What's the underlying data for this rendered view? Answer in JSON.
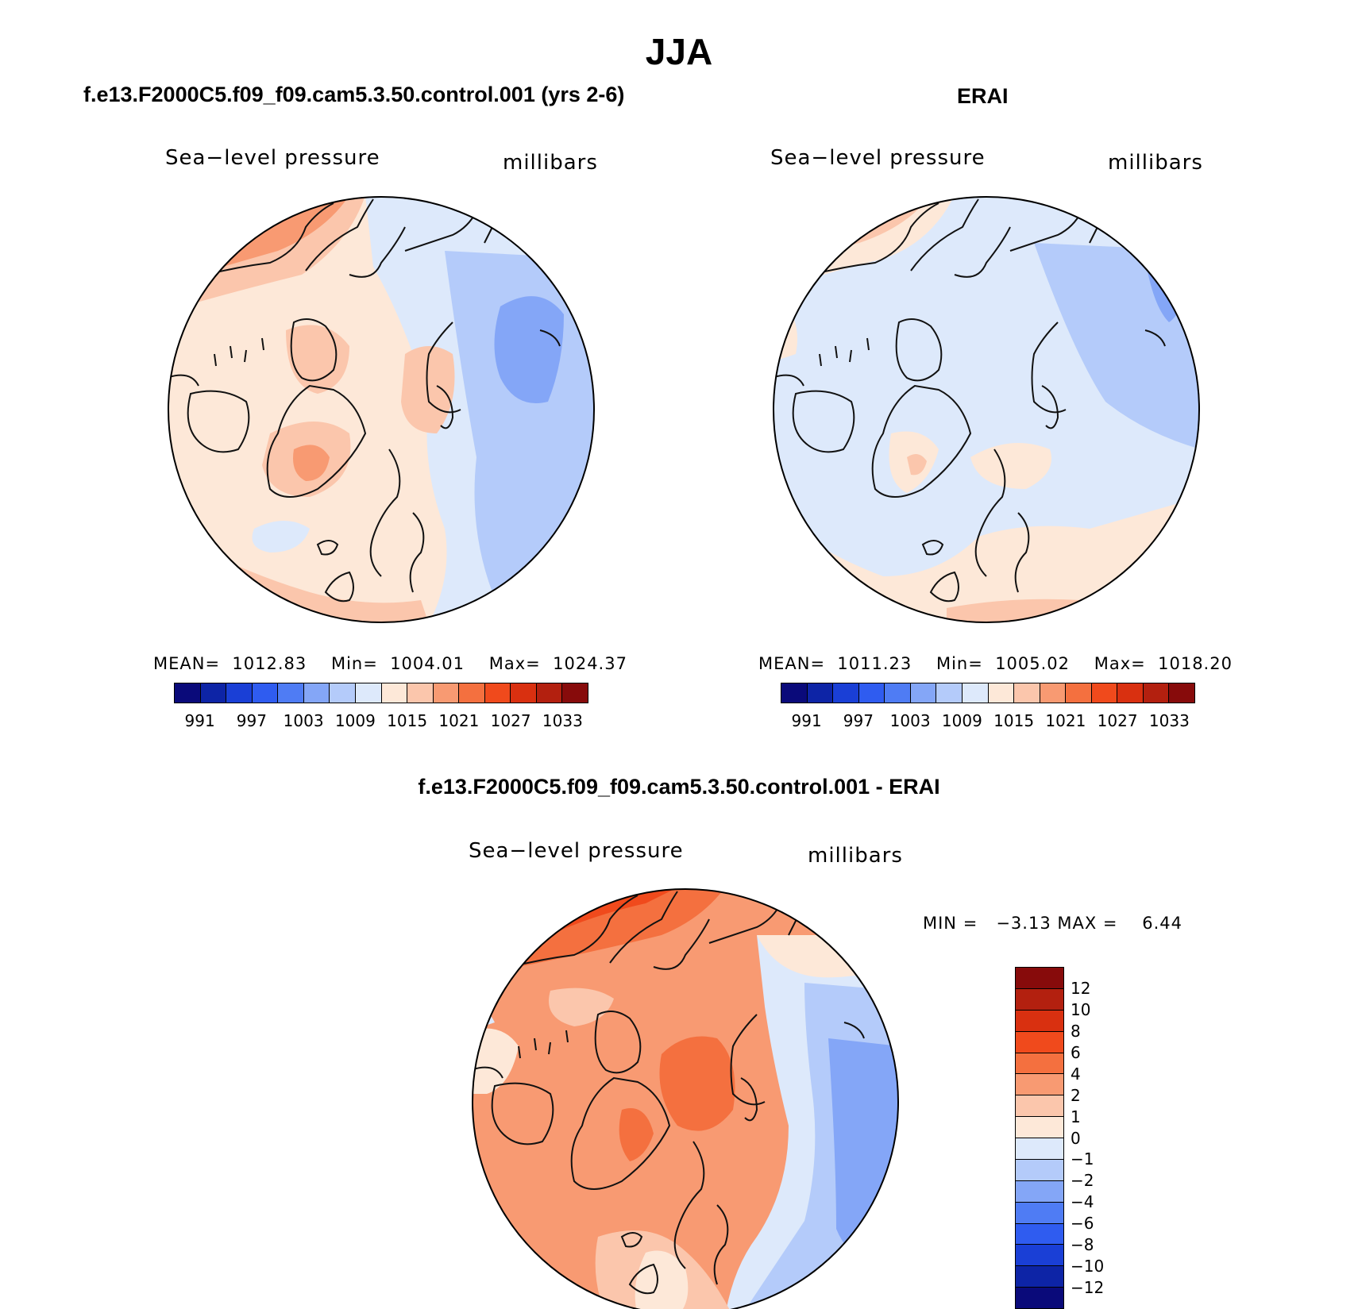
{
  "title": "JJA",
  "panels": [
    {
      "title": "f.e13.F2000C5.f09_f09.cam5.3.50.control.001 (yrs 2-6)",
      "field": "Sea−level pressure",
      "units": "millibars",
      "stats": {
        "mean_label": "MEAN=",
        "mean": "1012.83",
        "min_label": "Min=",
        "min": "1004.01",
        "max_label": "Max=",
        "max": "1024.37"
      }
    },
    {
      "title": "ERAI",
      "field": "Sea−level pressure",
      "units": "millibars",
      "stats": {
        "mean_label": "MEAN=",
        "mean": "1011.23",
        "min_label": "Min=",
        "min": "1005.02",
        "max_label": "Max=",
        "max": "1018.20"
      }
    },
    {
      "title": "f.e13.F2000C5.f09_f09.cam5.3.50.control.001 - ERAI",
      "field": "Sea−level pressure",
      "units": "millibars",
      "stats": {
        "min_label": "MIN =",
        "min": "−3.13",
        "max_label": "MAX =",
        "max": "6.44"
      }
    }
  ],
  "abs_colorbar": {
    "labels": [
      "991",
      "997",
      "1003",
      "1009",
      "1015",
      "1021",
      "1027",
      "1033"
    ],
    "colors": [
      "#0a0a7a",
      "#0d24a6",
      "#1a3fd6",
      "#2f5cf0",
      "#4f7cf4",
      "#84a6f7",
      "#b4cbfa",
      "#dde9fb",
      "#fde8d8",
      "#fbc6ac",
      "#f89a72",
      "#f4703f",
      "#f04a1c",
      "#d93010",
      "#b3200f",
      "#870b0b"
    ]
  },
  "diff_colorbar": {
    "labels": [
      "12",
      "10",
      "8",
      "6",
      "4",
      "2",
      "1",
      "0",
      "−1",
      "−2",
      "−4",
      "−6",
      "−8",
      "−10",
      "−12"
    ],
    "colors": [
      "#870b0b",
      "#b3200f",
      "#d93010",
      "#f04a1c",
      "#f4703f",
      "#f89a72",
      "#fbc6ac",
      "#fde8d8",
      "#dde9fb",
      "#b4cbfa",
      "#84a6f7",
      "#4f7cf4",
      "#2f5cf0",
      "#1a3fd6",
      "#0d24a6",
      "#0a0a7a"
    ]
  },
  "colors": {
    "outline": "#000000",
    "coast": "#111111"
  }
}
